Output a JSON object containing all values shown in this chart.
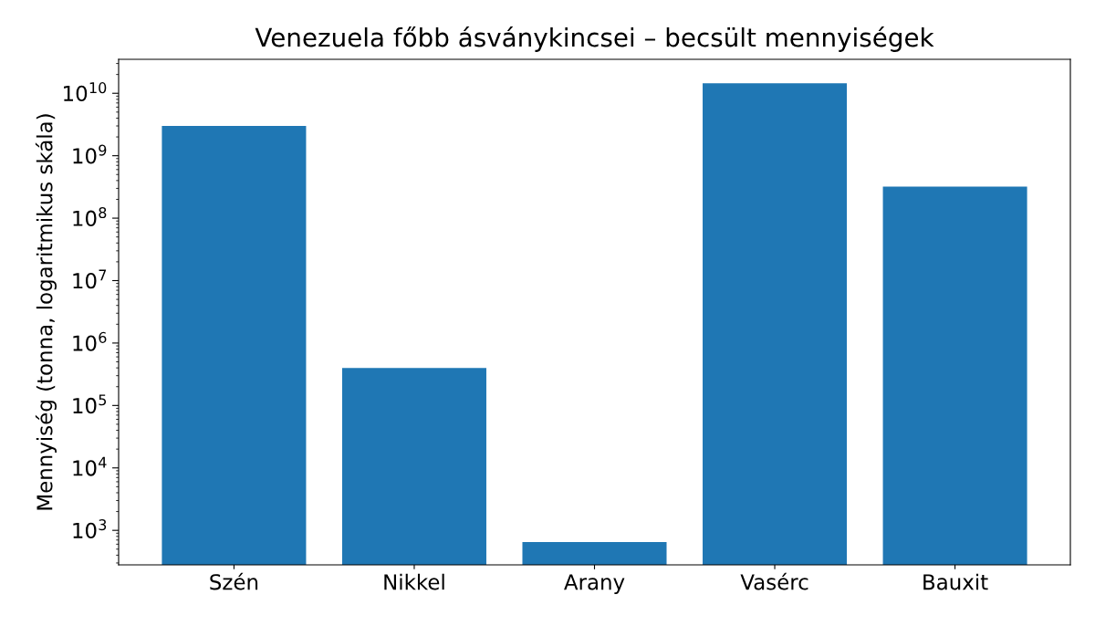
{
  "chart_data": {
    "type": "bar",
    "title": "Venezuela főbb ásványkincsei – becsült mennyiségek",
    "ylabel": "Mennyiség (tonna, logaritmikus skála)",
    "categories": [
      "Szén",
      "Nikkel",
      "Arany",
      "Vasérc",
      "Bauxit"
    ],
    "values": [
      3000000000,
      400000,
      650,
      14500000000,
      320000000
    ],
    "color": "#1f77b4",
    "log": "y",
    "ylim": [
      280,
      35000000000
    ],
    "yticks": [
      {
        "value": 1000,
        "label": "10$^{3}$"
      },
      {
        "value": 10000,
        "label": "10$^{4}$"
      },
      {
        "value": 100000,
        "label": "10$^{5}$"
      },
      {
        "value": 1000000,
        "label": "10$^{6}$"
      },
      {
        "value": 10000000,
        "label": "10$^{7}$"
      },
      {
        "value": 100000000,
        "label": "10$^{8}$"
      },
      {
        "value": 1000000000,
        "label": "10$^{9}$"
      },
      {
        "value": 10000000000,
        "label": "10$^{10}$"
      }
    ],
    "grid": false,
    "legend": false
  }
}
